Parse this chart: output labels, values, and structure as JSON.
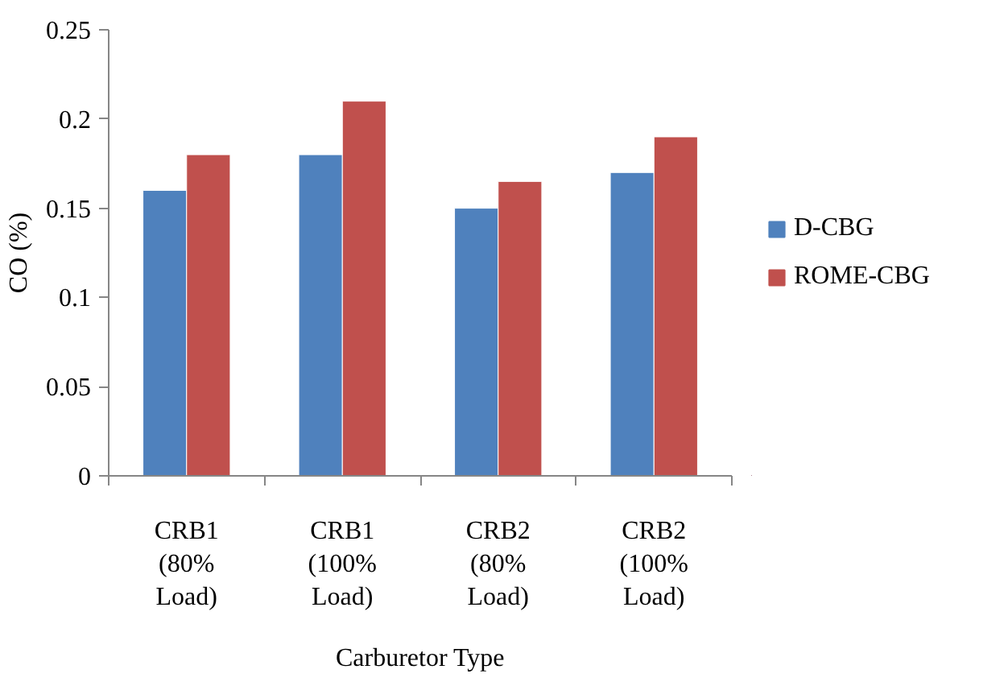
{
  "chart_data": {
    "type": "bar",
    "xlabel": "Carburetor Type",
    "ylabel": "CO (%)",
    "categories": [
      "CRB1 (80% Load)",
      "CRB1 (100% Load)",
      "CRB2 (80% Load)",
      "CRB2 (100% Load)"
    ],
    "series": [
      {
        "name": "D-CBG",
        "color": "#4f81bd",
        "values": [
          0.16,
          0.18,
          0.15,
          0.17
        ]
      },
      {
        "name": "ROME-CBG",
        "color": "#c0504d",
        "values": [
          0.18,
          0.21,
          0.165,
          0.19
        ]
      }
    ],
    "ylim": [
      0,
      0.25
    ],
    "yticks": [
      0,
      0.05,
      0.1,
      0.15,
      0.2,
      0.25
    ],
    "grid": false,
    "legend": "right"
  }
}
